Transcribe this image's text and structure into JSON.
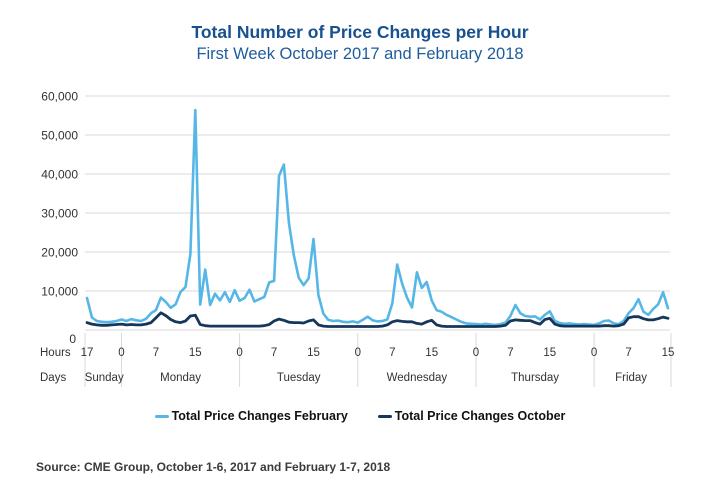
{
  "header": {
    "title": "Total Number of Price Changes per Hour",
    "subtitle": "First Week October 2017 and February 2018"
  },
  "colors": {
    "title": "#17518f",
    "subtitle": "#1f5c9c",
    "grid": "#d9d9d9",
    "axis_text": "#333333",
    "legend_text": "#111111",
    "source_text": "#3b3b3b",
    "february_line": "#56b7e6",
    "october_line": "#16365c"
  },
  "source": {
    "text": "Source: CME Group, October 1-6, 2017 and February 1-7, 2018"
  },
  "chart_data": {
    "type": "line",
    "title": "Total Number of Price Changes per Hour",
    "subtitle": "First Week October 2017 and February 2018",
    "x_description": "Hourly observations from Sunday 17:00 through Friday 15:00",
    "ylim": [
      0,
      60000
    ],
    "grid": "horizontal",
    "legend_position": "bottom",
    "y_ticks": [
      {
        "value": 0,
        "label": "0"
      },
      {
        "value": 10000,
        "label": "10,000"
      },
      {
        "value": 20000,
        "label": "20,000"
      },
      {
        "value": 30000,
        "label": "30,000"
      },
      {
        "value": 40000,
        "label": "40,000"
      },
      {
        "value": 50000,
        "label": "50,000"
      },
      {
        "value": 60000,
        "label": "60,000"
      }
    ],
    "axis_row_labels": {
      "hours": "Hours",
      "days": "Days"
    },
    "hour_ticks": [
      {
        "h": 0,
        "label": "17"
      },
      {
        "h": 7,
        "label": "0"
      },
      {
        "h": 14,
        "label": "7"
      },
      {
        "h": 22,
        "label": "15"
      },
      {
        "h": 31,
        "label": "0"
      },
      {
        "h": 38,
        "label": "7"
      },
      {
        "h": 46,
        "label": "15"
      },
      {
        "h": 55,
        "label": "0"
      },
      {
        "h": 62,
        "label": "7"
      },
      {
        "h": 70,
        "label": "15"
      },
      {
        "h": 79,
        "label": "0"
      },
      {
        "h": 86,
        "label": "7"
      },
      {
        "h": 94,
        "label": "15"
      },
      {
        "h": 103,
        "label": "0"
      },
      {
        "h": 110,
        "label": "7"
      },
      {
        "h": 118,
        "label": "15"
      }
    ],
    "days": [
      {
        "label": "Sunday",
        "h_start": 0,
        "h_center": 3.5
      },
      {
        "label": "Monday",
        "h_start": 7,
        "h_center": 19
      },
      {
        "label": "Tuesday",
        "h_start": 31,
        "h_center": 43
      },
      {
        "label": "Wednesday",
        "h_start": 55,
        "h_center": 67
      },
      {
        "label": "Thursday",
        "h_start": 79,
        "h_center": 91
      },
      {
        "label": "Friday",
        "h_start": 103,
        "h_center": 110.5
      }
    ],
    "series": [
      {
        "id": "february",
        "name": "Total Price Changes February",
        "color": "#56b7e6",
        "values": [
          8200,
          3200,
          2300,
          2100,
          2000,
          2100,
          2300,
          2700,
          2300,
          2800,
          2500,
          2300,
          2900,
          4300,
          5100,
          8300,
          7200,
          5700,
          6600,
          9800,
          11000,
          19500,
          56400,
          6500,
          15500,
          6400,
          9300,
          7600,
          9700,
          7200,
          10200,
          7500,
          8200,
          10300,
          7300,
          7900,
          8500,
          12200,
          12600,
          39500,
          42400,
          27500,
          19200,
          13400,
          11500,
          13200,
          23300,
          9000,
          4200,
          2600,
          2300,
          2400,
          2100,
          2000,
          2200,
          1900,
          2600,
          3400,
          2500,
          2200,
          2300,
          2700,
          6800,
          16800,
          11900,
          8300,
          5800,
          14800,
          10800,
          12300,
          7600,
          5100,
          4700,
          3900,
          3300,
          2700,
          2100,
          1700,
          1600,
          1500,
          1400,
          1600,
          1400,
          1300,
          1500,
          1900,
          3600,
          6400,
          4300,
          3600,
          3400,
          3500,
          2700,
          3900,
          4800,
          2300,
          1800,
          1600,
          1700,
          1500,
          1400,
          1500,
          1400,
          1300,
          1700,
          2300,
          2400,
          1700,
          1500,
          2300,
          4300,
          5600,
          7900,
          4700,
          3900,
          5400,
          6600,
          9700,
          5600
        ]
      },
      {
        "id": "october",
        "name": "Total Price Changes October",
        "color": "#16365c",
        "values": [
          1900,
          1500,
          1300,
          1200,
          1200,
          1300,
          1400,
          1500,
          1300,
          1400,
          1300,
          1300,
          1500,
          1900,
          3100,
          4400,
          3700,
          2700,
          2100,
          1900,
          2300,
          3600,
          3800,
          1400,
          1100,
          1000,
          1000,
          1000,
          1000,
          1000,
          1000,
          1000,
          1000,
          1000,
          1000,
          1000,
          1100,
          1400,
          2300,
          2800,
          2500,
          2000,
          1900,
          1900,
          1800,
          2300,
          2600,
          1300,
          1000,
          900,
          900,
          900,
          900,
          900,
          900,
          900,
          900,
          900,
          900,
          900,
          1000,
          1300,
          2100,
          2400,
          2200,
          2100,
          2100,
          1700,
          1500,
          2100,
          2500,
          1300,
          1000,
          900,
          900,
          900,
          900,
          900,
          900,
          900,
          900,
          900,
          900,
          900,
          1000,
          1200,
          2300,
          2600,
          2500,
          2400,
          2400,
          1900,
          1500,
          2700,
          3000,
          1500,
          1100,
          1000,
          1000,
          1000,
          1000,
          1000,
          1000,
          1000,
          1000,
          1100,
          1100,
          1000,
          1100,
          1500,
          3100,
          3400,
          3400,
          2900,
          2600,
          2600,
          2900,
          3300,
          3000
        ]
      }
    ]
  }
}
